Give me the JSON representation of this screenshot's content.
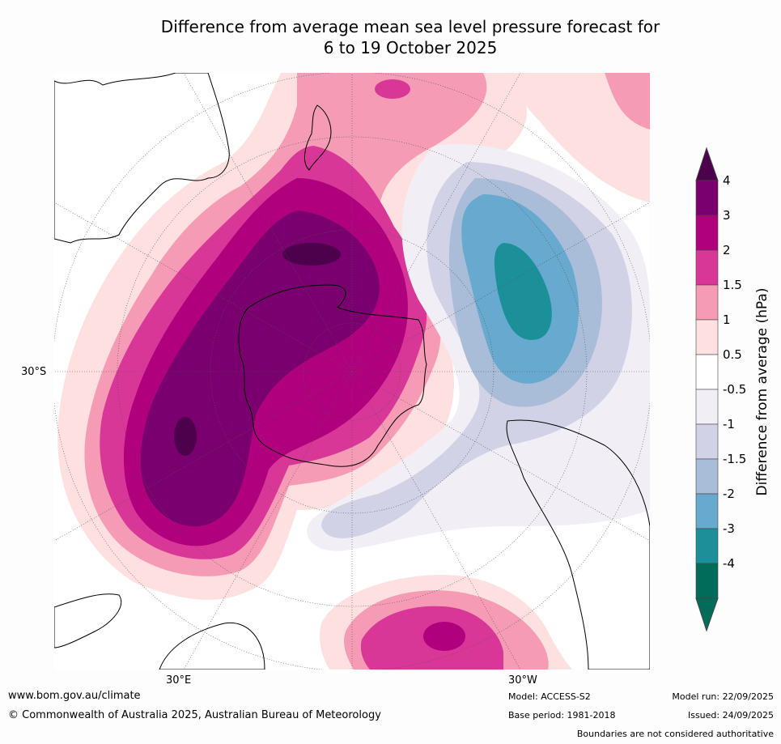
{
  "title": {
    "line1": "Difference from average mean sea level pressure forecast for",
    "line2": "6 to 19 October 2025"
  },
  "map_labels": {
    "lat": "30°S",
    "lon_east": "30°E",
    "lon_west": "30°W"
  },
  "legend": {
    "title": "Difference from average (hPa)",
    "ticks": [
      "4",
      "3",
      "2",
      "1.5",
      "1",
      "0.5",
      "-0.5",
      "-1",
      "-1.5",
      "-2",
      "-3",
      "-4"
    ],
    "colors": [
      "#7b006f",
      "#b0007e",
      "#d93797",
      "#f59bb5",
      "#fde0df",
      "#ffffff",
      "#f2eef5",
      "#d2d2e6",
      "#a9bcd8",
      "#67a9cf",
      "#1c9099",
      "#016c59"
    ],
    "top_arrow_color": "#4d004b",
    "bottom_arrow_color": "#016c59"
  },
  "footer": {
    "website": "www.bom.gov.au/climate",
    "copyright": "© Commonwealth of Australia 2025, Australian Bureau of Meteorology",
    "model": "Model: ACCESS-S2",
    "base_period": "Base period: 1981-2018",
    "model_run": "Model run: 22/09/2025",
    "issued": "Issued: 24/09/2025",
    "disclaimer": "Boundaries are not considered authoritative"
  }
}
